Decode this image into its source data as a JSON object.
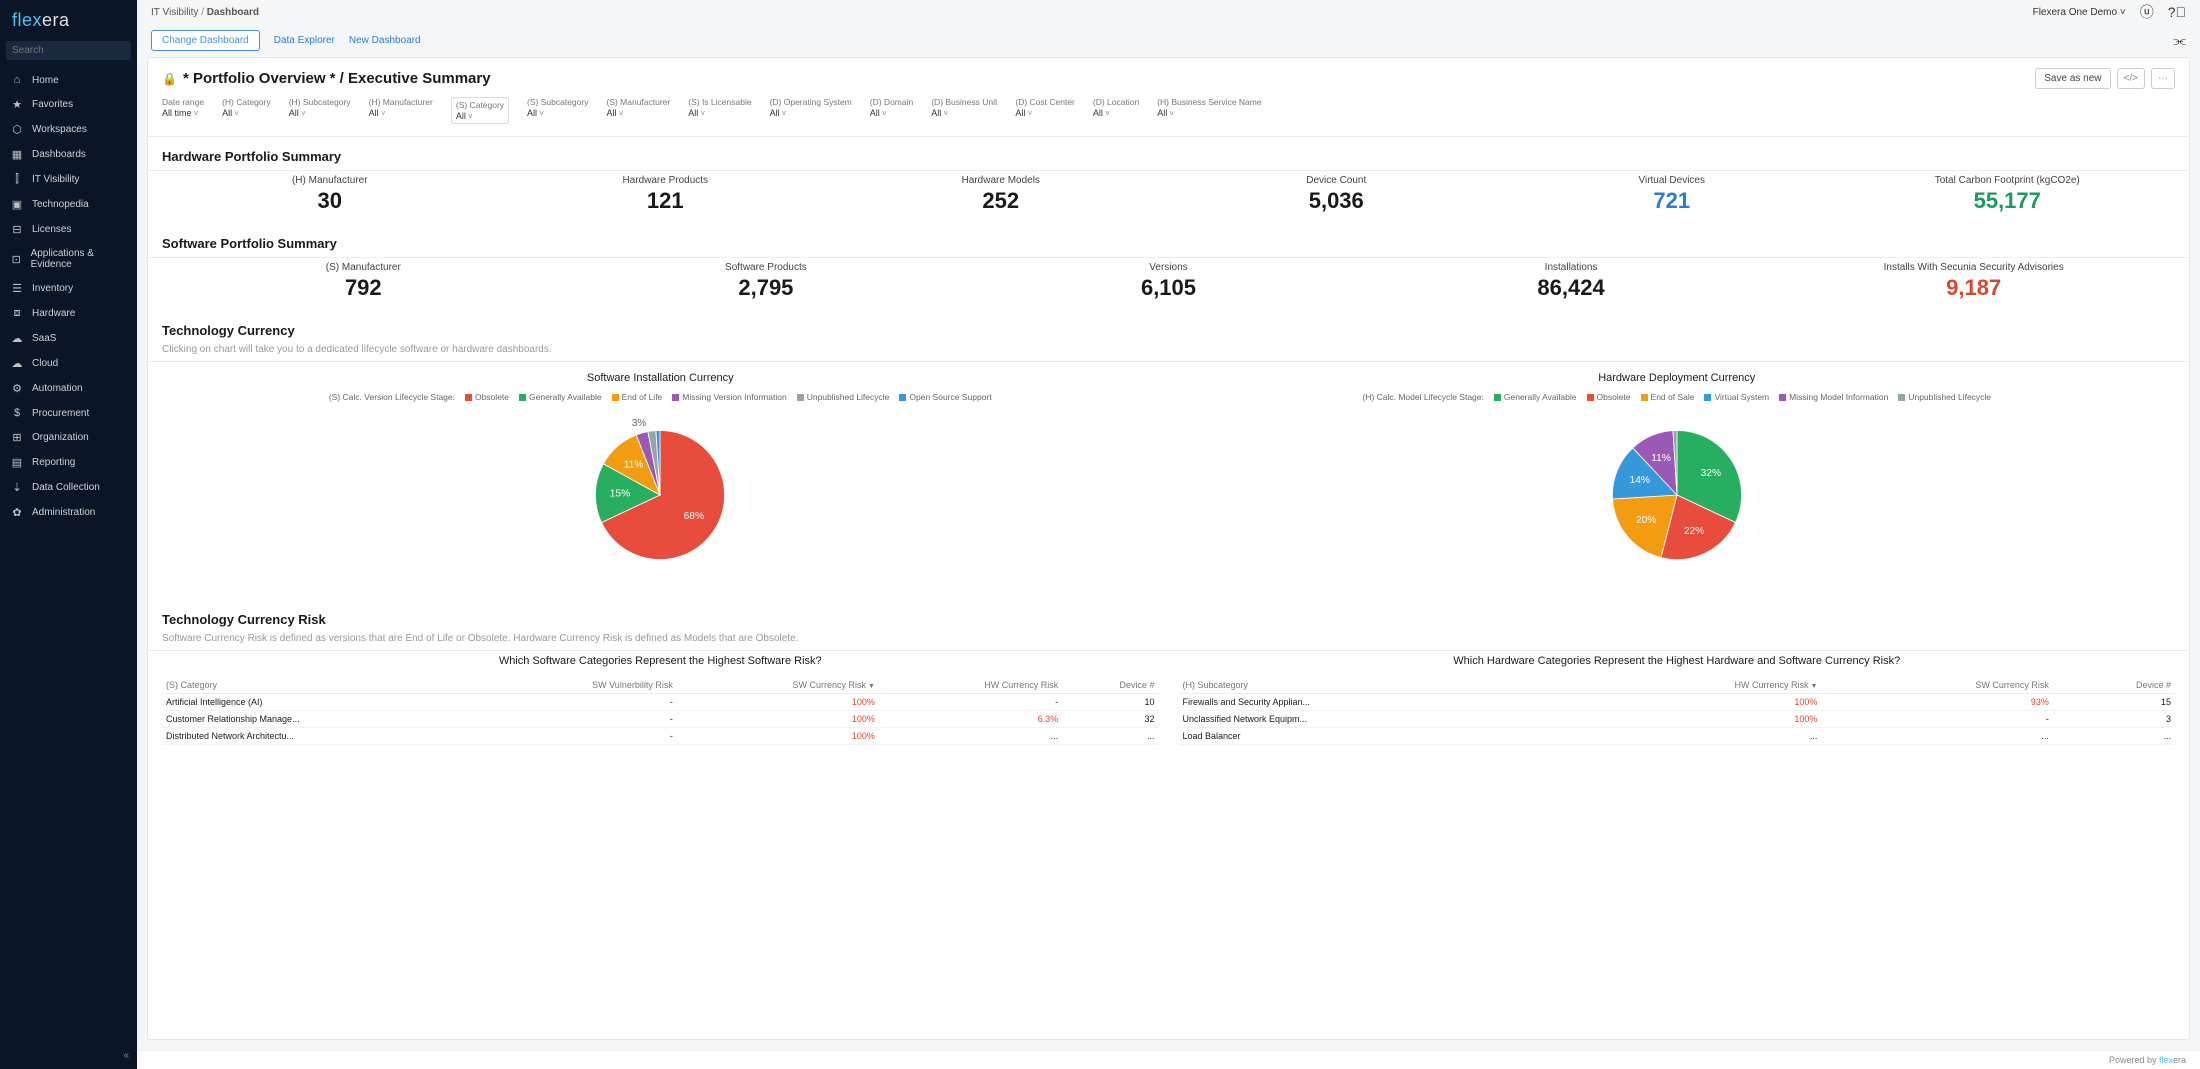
{
  "brand": {
    "part1": "flex",
    "part2": "era"
  },
  "search": {
    "placeholder": "Search"
  },
  "nav": [
    {
      "icon": "⌂",
      "label": "Home"
    },
    {
      "icon": "★",
      "label": "Favorites"
    },
    {
      "icon": "⬡",
      "label": "Workspaces"
    },
    {
      "icon": "▦",
      "label": "Dashboards"
    },
    {
      "icon": "⫿",
      "label": "IT Visibility"
    },
    {
      "icon": "▣",
      "label": "Technopedia"
    },
    {
      "icon": "⊟",
      "label": "Licenses"
    },
    {
      "icon": "⊡",
      "label": "Applications & Evidence"
    },
    {
      "icon": "☰",
      "label": "Inventory"
    },
    {
      "icon": "⧈",
      "label": "Hardware"
    },
    {
      "icon": "☁",
      "label": "SaaS"
    },
    {
      "icon": "☁",
      "label": "Cloud"
    },
    {
      "icon": "⚙",
      "label": "Automation"
    },
    {
      "icon": "$",
      "label": "Procurement"
    },
    {
      "icon": "⊞",
      "label": "Organization"
    },
    {
      "icon": "▤",
      "label": "Reporting"
    },
    {
      "icon": "⇣",
      "label": "Data Collection"
    },
    {
      "icon": "✿",
      "label": "Administration"
    }
  ],
  "breadcrumb": {
    "a": "IT Visibility",
    "b": "Dashboard"
  },
  "topright": {
    "org": "Flexera One Demo"
  },
  "toolbar": {
    "change": "Change Dashboard",
    "explorer": "Data Explorer",
    "newdb": "New Dashboard"
  },
  "page": {
    "lock": "🔒",
    "title": "* Portfolio Overview * / Executive Summary",
    "save": "Save as new",
    "code": "</>",
    "more": "⋯"
  },
  "filters": [
    {
      "label": "Date range",
      "value": "All time",
      "boxed": false
    },
    {
      "label": "(H) Category",
      "value": "All",
      "boxed": false
    },
    {
      "label": "(H) Subcategory",
      "value": "All",
      "boxed": false
    },
    {
      "label": "(H) Manufacturer",
      "value": "All",
      "boxed": false
    },
    {
      "label": "(S) Category",
      "value": "All",
      "boxed": true
    },
    {
      "label": "(S) Subcategory",
      "value": "All",
      "boxed": false
    },
    {
      "label": "(S) Manufacturer",
      "value": "All",
      "boxed": false
    },
    {
      "label": "(S) Is Licensable",
      "value": "All",
      "boxed": false
    },
    {
      "label": "(D) Operating System",
      "value": "All",
      "boxed": false
    },
    {
      "label": "(D) Domain",
      "value": "All",
      "boxed": false
    },
    {
      "label": "(D) Business Unit",
      "value": "All",
      "boxed": false
    },
    {
      "label": "(D) Cost Center",
      "value": "All",
      "boxed": false
    },
    {
      "label": "(D) Location",
      "value": "All",
      "boxed": false
    },
    {
      "label": "(H) Business Service Name",
      "value": "All",
      "boxed": false
    }
  ],
  "hw_section": "Hardware Portfolio Summary",
  "hw_kpi": [
    {
      "label": "(H) Manufacturer",
      "value": "30",
      "class": ""
    },
    {
      "label": "Hardware Products",
      "value": "121",
      "class": ""
    },
    {
      "label": "Hardware Models",
      "value": "252",
      "class": ""
    },
    {
      "label": "Device Count",
      "value": "5,036",
      "class": ""
    },
    {
      "label": "Virtual Devices",
      "value": "721",
      "class": "blue"
    },
    {
      "label": "Total Carbon Footprint (kgCO2e)",
      "value": "55,177",
      "class": "green"
    }
  ],
  "sw_section": "Software Portfolio Summary",
  "sw_kpi": [
    {
      "label": "(S) Manufacturer",
      "value": "792",
      "class": ""
    },
    {
      "label": "Software Products",
      "value": "2,795",
      "class": ""
    },
    {
      "label": "Versions",
      "value": "6,105",
      "class": ""
    },
    {
      "label": "Installations",
      "value": "86,424",
      "class": ""
    },
    {
      "label": "Installs With Secunia Security Advisories",
      "value": "9,187",
      "class": "red"
    }
  ],
  "tc_section": "Technology Currency",
  "tc_sub": "Clicking on chart will take you to a dedicated lifecycle software or hardware dashboards.",
  "chart1": {
    "title": "Software Installation Currency",
    "legend_title": "(S) Calc. Version Lifecycle Stage:",
    "legend": [
      {
        "label": "Obsolete",
        "color": "#e74c3c"
      },
      {
        "label": "Generally Available",
        "color": "#27ae60"
      },
      {
        "label": "End of Life",
        "color": "#f39c12"
      },
      {
        "label": "Missing Version Information",
        "color": "#9b59b6"
      },
      {
        "label": "Unpublished Lifecycle",
        "color": "#95a5a6"
      },
      {
        "label": "Open Source Support",
        "color": "#3498db"
      }
    ],
    "slices": [
      {
        "pct": 68,
        "color": "#e74c3c",
        "label": "68%"
      },
      {
        "pct": 15,
        "color": "#27ae60",
        "label": "15%"
      },
      {
        "pct": 11,
        "color": "#f39c12",
        "label": "11%"
      },
      {
        "pct": 3,
        "color": "#9b59b6",
        "label": "3%",
        "small": true
      },
      {
        "pct": 2,
        "color": "#95a5a6",
        "label": "",
        "small": true
      },
      {
        "pct": 1,
        "color": "#3498db",
        "label": "",
        "small": true
      }
    ]
  },
  "chart2": {
    "title": "Hardware Deployment Currency",
    "legend_title": "(H) Calc. Model Lifecycle Stage:",
    "legend": [
      {
        "label": "Generally Available",
        "color": "#27ae60"
      },
      {
        "label": "Obsolete",
        "color": "#e74c3c"
      },
      {
        "label": "End of Sale",
        "color": "#f39c12"
      },
      {
        "label": "Virtual System",
        "color": "#3498db"
      },
      {
        "label": "Missing Model Information",
        "color": "#9b59b6"
      },
      {
        "label": "Unpublished Lifecycle",
        "color": "#95a5a6"
      }
    ],
    "slices": [
      {
        "pct": 32,
        "color": "#27ae60",
        "label": "32%"
      },
      {
        "pct": 22,
        "color": "#e74c3c",
        "label": "22%"
      },
      {
        "pct": 20,
        "color": "#f39c12",
        "label": "20%"
      },
      {
        "pct": 14,
        "color": "#3498db",
        "label": "14%"
      },
      {
        "pct": 11,
        "color": "#9b59b6",
        "label": "11%"
      },
      {
        "pct": 1,
        "color": "#95a5a6",
        "label": "",
        "small": true
      }
    ]
  },
  "tcr_section": "Technology Currency Risk",
  "tcr_sub": "Software Currency Risk is defined as versions that are End of Life or Obsolete.  Hardware Currency Risk is defined as Models that are Obsolete.",
  "table1": {
    "title": "Which Software Categories Represent the Highest Software Risk?",
    "cols": [
      "(S) Category",
      "SW Vulnerbility Risk",
      "SW Currency Risk",
      "HW Currency Risk",
      "Device #"
    ],
    "rows": [
      [
        "Artificial Intelligence (AI)",
        "-",
        "100%",
        "-",
        "10"
      ],
      [
        "Customer Relationship Manage...",
        "-",
        "100%",
        "6.3%",
        "32"
      ],
      [
        "Distributed Network Architectu...",
        "-",
        "100%",
        "...",
        "..."
      ]
    ]
  },
  "table2": {
    "title": "Which Hardware Categories Represent the Highest Hardware and Software Currency Risk?",
    "cols": [
      "(H) Subcategory",
      "HW Currency Risk",
      "SW Currency Risk",
      "Device #"
    ],
    "rows": [
      [
        "Firewalls and Security Applian...",
        "100%",
        "93%",
        "15"
      ],
      [
        "Unclassified Network Equipm...",
        "100%",
        "-",
        "3"
      ],
      [
        "Load Balancer",
        "...",
        "...",
        "..."
      ]
    ]
  },
  "footer": {
    "text": "Powered by ",
    "brand1": "flex",
    "brand2": "era"
  }
}
